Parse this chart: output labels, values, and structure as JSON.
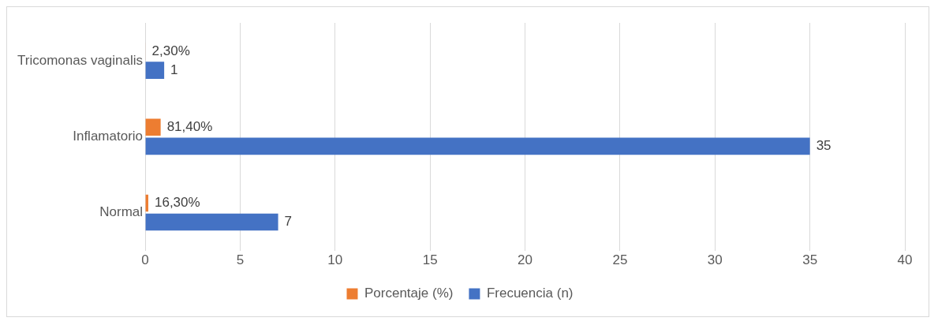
{
  "chart_data": {
    "type": "bar",
    "orientation": "horizontal",
    "categories": [
      "Tricomonas vaginalis",
      "Inflamatorio",
      "Normal"
    ],
    "series": [
      {
        "name": "Porcentaje (%)",
        "color": "#ed7d31",
        "values": [
          0.023,
          0.814,
          0.163
        ],
        "value_labels": [
          "2,30%",
          "81,40%",
          "16,30%"
        ]
      },
      {
        "name": "Frecuencia (n)",
        "color": "#4472c4",
        "values": [
          1,
          35,
          7
        ],
        "value_labels": [
          "1",
          "35",
          "7"
        ]
      }
    ],
    "xlim": [
      0,
      40
    ],
    "xticks": [
      0,
      5,
      10,
      15,
      20,
      25,
      30,
      35,
      40
    ],
    "grid": "x",
    "legend": "bottom"
  }
}
